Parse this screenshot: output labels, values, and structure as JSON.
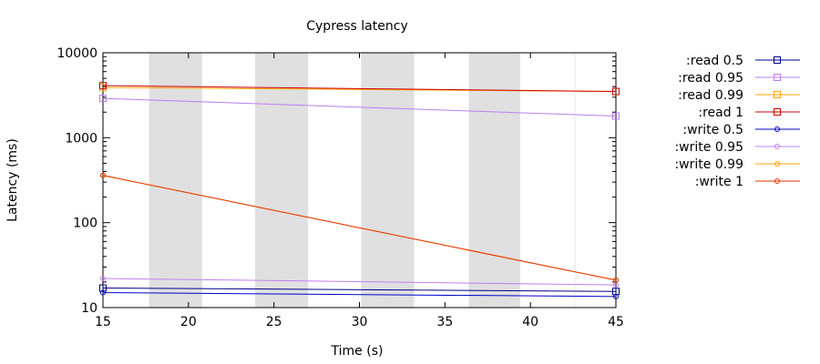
{
  "chart_data": {
    "type": "line",
    "title": "Cypress latency",
    "xlabel": "Time (s)",
    "ylabel": "Latency (ms)",
    "xlim": [
      15,
      45
    ],
    "ylim": [
      10,
      10000
    ],
    "yscale": "log",
    "xticks": [
      15,
      20,
      25,
      30,
      35,
      40,
      45
    ],
    "yticks": [
      10,
      100,
      1000,
      10000
    ],
    "grid": false,
    "legend": "right",
    "shaded_bands": [
      [
        17.7,
        20.8
      ],
      [
        23.9,
        27.0
      ],
      [
        30.1,
        33.2
      ],
      [
        36.4,
        39.4
      ]
    ],
    "series": [
      {
        "name": ":read 0.5",
        "color": "#00008b",
        "marker": "square",
        "x": [
          15,
          45
        ],
        "y": [
          17,
          15.5
        ]
      },
      {
        "name": ":read 0.95",
        "color": "#b77ff5",
        "marker": "square",
        "x": [
          15,
          45
        ],
        "y": [
          2900,
          1800
        ]
      },
      {
        "name": ":read 0.99",
        "color": "#ffa500",
        "marker": "square",
        "x": [
          15,
          45
        ],
        "y": [
          3900,
          3500
        ]
      },
      {
        "name": ":read 1",
        "color": "#cc0000",
        "marker": "square",
        "x": [
          15,
          45
        ],
        "y": [
          4100,
          3500
        ]
      },
      {
        "name": ":write 0.5",
        "color": "#0000cd",
        "marker": "circle",
        "x": [
          15,
          45
        ],
        "y": [
          15,
          13.5
        ]
      },
      {
        "name": ":write 0.95",
        "color": "#c080f0",
        "marker": "circle",
        "x": [
          15,
          45
        ],
        "y": [
          22,
          18.5
        ]
      },
      {
        "name": ":write 0.99",
        "color": "#ffa500",
        "marker": "circle",
        "x": [
          15,
          45
        ],
        "y": [
          360,
          21
        ]
      },
      {
        "name": ":write 1",
        "color": "#e83000",
        "marker": "circle",
        "x": [
          15,
          45
        ],
        "y": [
          360,
          21
        ]
      }
    ]
  }
}
